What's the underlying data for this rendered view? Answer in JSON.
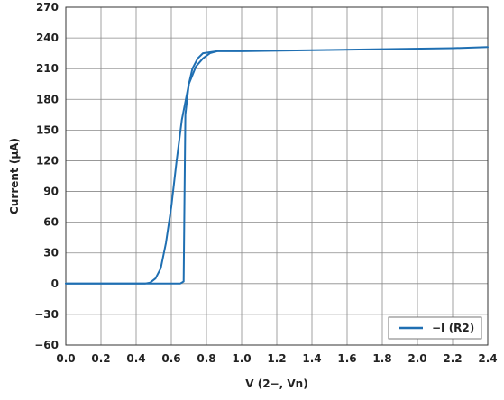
{
  "chart_data": {
    "type": "line",
    "xlabel": "V (2−, Vn)",
    "ylabel": "Current (µA)",
    "xlim": [
      0.0,
      2.4
    ],
    "ylim": [
      -60,
      270
    ],
    "x_ticks": [
      "0.0",
      "0.2",
      "0.4",
      "0.6",
      "0.8",
      "1.0",
      "1.2",
      "1.4",
      "1.6",
      "1.8",
      "2.0",
      "2.2",
      "2.4"
    ],
    "x_tick_values": [
      0.0,
      0.2,
      0.4,
      0.6,
      0.8,
      1.0,
      1.2,
      1.4,
      1.6,
      1.8,
      2.0,
      2.2,
      2.4
    ],
    "y_ticks": [
      "270",
      "240",
      "210",
      "180",
      "150",
      "120",
      "90",
      "60",
      "30",
      "0",
      "−30",
      "−60"
    ],
    "y_tick_values": [
      270,
      240,
      210,
      180,
      150,
      120,
      90,
      60,
      30,
      0,
      -30,
      -60
    ],
    "grid": true,
    "legend_position": "bottom-right",
    "series": [
      {
        "name": "−I (R2)",
        "color": "#1f6fb2",
        "segments": [
          {
            "x": [
              0.0,
              0.4,
              0.45,
              0.48,
              0.51,
              0.54,
              0.57,
              0.6,
              0.63,
              0.66,
              0.7,
              0.74,
              0.78,
              0.82,
              0.86,
              1.0,
              1.4,
              1.8,
              2.2,
              2.4
            ],
            "y": [
              0,
              0,
              0,
              1,
              5,
              15,
              40,
              75,
              120,
              160,
              195,
              212,
              220,
              225,
              227,
              227,
              228,
              229,
              230,
              231
            ]
          },
          {
            "x": [
              0.0,
              0.6,
              0.65,
              0.67,
              0.675,
              0.68,
              0.7,
              0.72,
              0.75,
              0.78,
              0.82,
              0.86
            ],
            "y": [
              0,
              0,
              0,
              2,
              80,
              165,
              195,
              210,
              220,
              225,
              226,
              227
            ]
          }
        ]
      }
    ]
  }
}
